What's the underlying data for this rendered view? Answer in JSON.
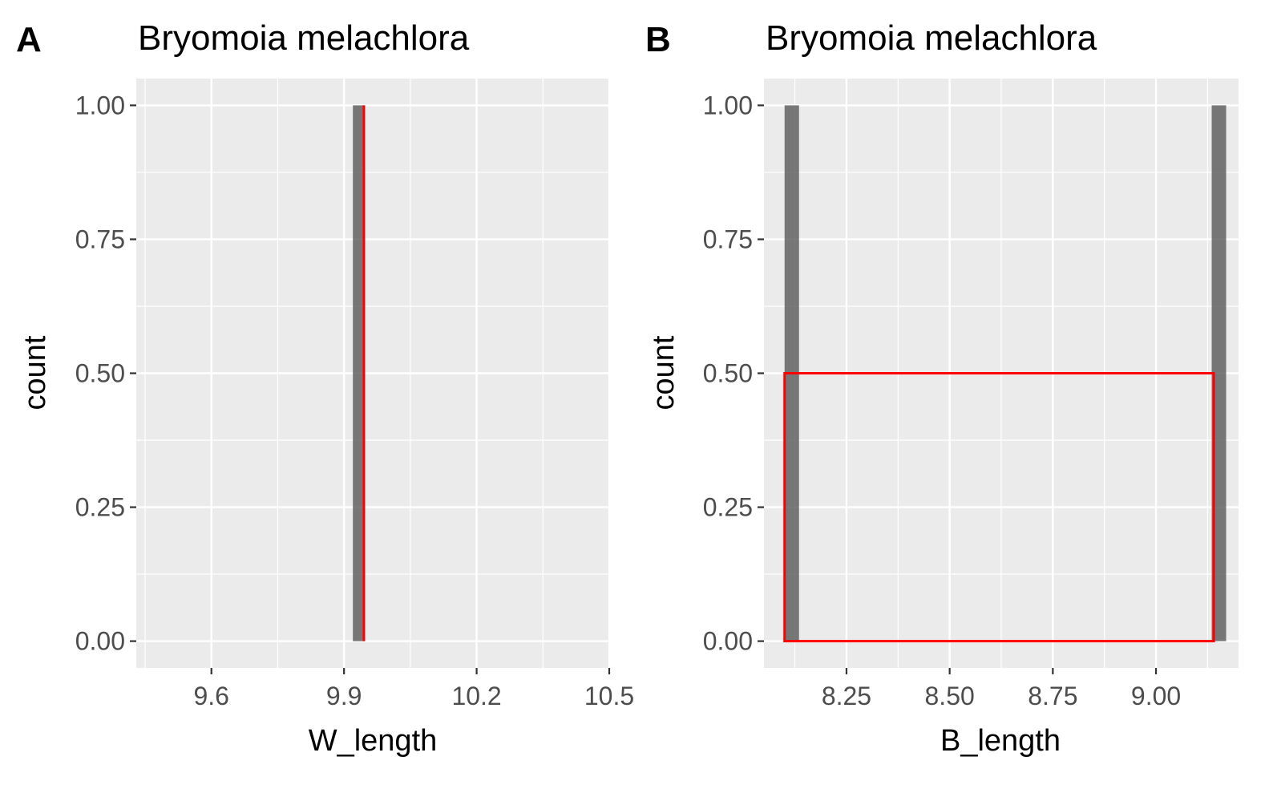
{
  "colors": {
    "panel_background": "#EBEBEB",
    "grid_major": "#FFFFFF",
    "grid_minor": "#F5F5F5",
    "bar_fill": "#595959",
    "overlay_line": "#FF0000",
    "axis_text": "#4D4D4D",
    "title_text": "#000000"
  },
  "chart_data": [
    {
      "tag": "A",
      "type": "bar",
      "title": "Bryomoia melachlora",
      "xlabel": "W_length",
      "ylabel": "count",
      "xlim": [
        9.43,
        10.5
      ],
      "ylim": [
        -0.05,
        1.05
      ],
      "x_ticks": [
        9.6,
        9.9,
        10.2,
        10.5
      ],
      "x_tick_labels": [
        "9.6",
        "9.9",
        "10.2",
        "10.5"
      ],
      "y_ticks": [
        0,
        0.25,
        0.5,
        0.75,
        1
      ],
      "y_tick_labels": [
        "0.00",
        "0.25",
        "0.50",
        "0.75",
        "1.00"
      ],
      "grid": true,
      "bars": [
        {
          "x_min": 9.92,
          "x_max": 9.945,
          "count": 1
        }
      ],
      "overlay": {
        "type": "line",
        "color": "red",
        "x": [
          9.945,
          9.945
        ],
        "y": [
          0,
          1
        ]
      }
    },
    {
      "tag": "B",
      "type": "bar",
      "title": "Bryomoia melachlora",
      "xlabel": "B_length",
      "ylabel": "count",
      "xlim": [
        8.05,
        9.2
      ],
      "ylim": [
        -0.05,
        1.05
      ],
      "x_ticks": [
        8.25,
        8.5,
        8.75,
        9.0
      ],
      "x_tick_labels": [
        "8.25",
        "8.50",
        "8.75",
        "9.00"
      ],
      "y_ticks": [
        0,
        0.25,
        0.5,
        0.75,
        1
      ],
      "y_tick_labels": [
        "0.00",
        "0.25",
        "0.50",
        "0.75",
        "1.00"
      ],
      "grid": true,
      "bars": [
        {
          "x_min": 8.1,
          "x_max": 8.135,
          "count": 1
        },
        {
          "x_min": 9.135,
          "x_max": 9.17,
          "count": 1
        }
      ],
      "overlay": {
        "type": "rect",
        "color": "red",
        "x_min": 8.1,
        "x_max": 9.14,
        "y_min": 0,
        "y_max": 0.5
      }
    }
  ]
}
